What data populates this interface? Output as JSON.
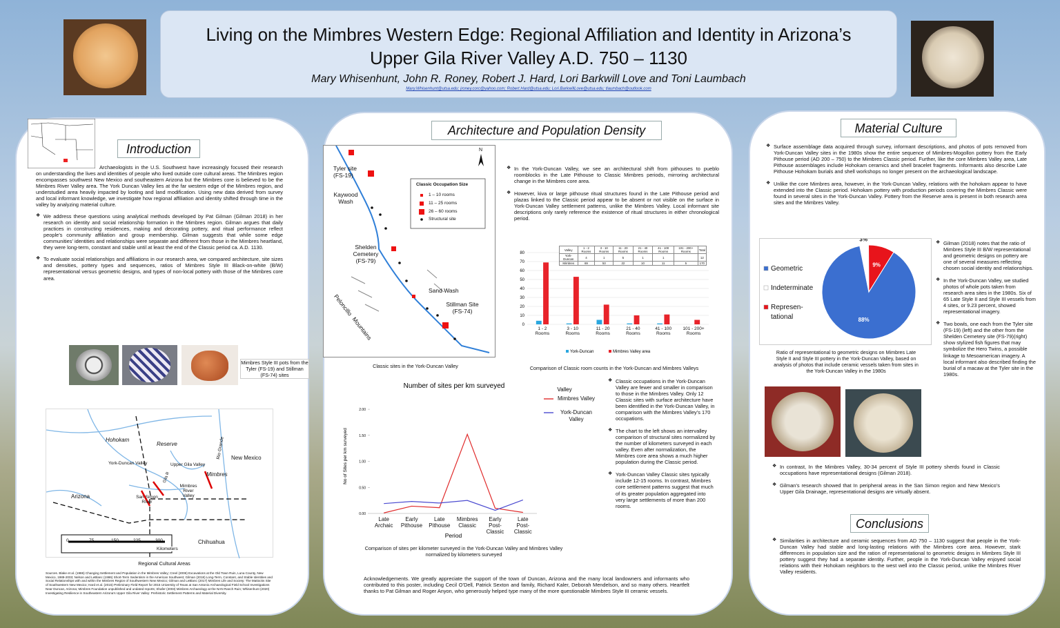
{
  "header": {
    "title": "Living on the Mimbres Western Edge: Regional Affiliation and Identity in Arizona’s Upper Gila River Valley A.D. 750 – 1130",
    "authors": "Mary Whisenhunt, John R. Roney, Robert J. Hard, Lori Barkwill Love and Toni Laumbach",
    "emails": "Mary.Whisenhunt@utsa.edu; jroney.corc@yahoo.com; Robert.Hard@utsa.edu; Lori.BarkwillLove@utsa.edu; tlaumbach@outlook.com"
  },
  "introduction": {
    "title": "Introduction",
    "paragraphs": [
      "Archaeologists in the U.S. Southwest have increasingly focused their research on understanding the lives and identities of people who lived outside core cultural areas. The Mimbres region encompasses southwest New Mexico and southeastern Arizona but the Mimbres core is believed to be the Mimbres River Valley area. The York Duncan Valley lies at the far western edge of the Mimbres region, and understudied area heavily impacted by looting and land modification. Using new data derived from survey and local informant knowledge, we investigate how regional affiliation and identity shifted through time in the valley by analyzing material culture.",
      "We address these questions using analytical methods developed by Pat Gilman (Gilman 2018) in her research on identity and social relationship formation in the Mimbres region. Gilman argues that daily practices in constructing residences, making and decorating pottery, and ritual performance reflect people’s community affiliation and group membership. Gilman suggests that while some edge communities’ identities and relationships were separate and different from those in the Mimbres heartland, they were long-term, constant and stable until at least the end of the Classic period ca. A.D. 1130.",
      "To evaluate social relationships and affiliations in our research area, we compared architecture, site sizes and densities, pottery types and sequences, ratios of Mimbres Style III Black-on-white (B/W) representational versus geometric designs, and types of non-local pottery with those of the Mimbres core area."
    ]
  },
  "pottery_figure": {
    "caption": "Mimbres Style III pots from the Tyler (FS-19) and Stillman (FS-74) sites"
  },
  "regional_map": {
    "caption": "Regional Cultural Areas",
    "labels": [
      "Hohokam",
      "Reserve",
      "Rio Grande",
      "New Mexico",
      "York-Duncan Valley",
      "Upper Gila Valley",
      "Gila R",
      "Mimbres",
      "Arizona",
      "San Simon River",
      "Mimbres River Valley",
      "Chihuahua"
    ],
    "scale": [
      0,
      75,
      150,
      225,
      300
    ],
    "scale_unit": "Kilometers"
  },
  "sources": "Sources. Blake et al. (1986) Changing Settlement and Population in the Mimbres Valley; Creel (2006) Excavations at the Old Town Ruin, Luna County, New Mexico, 1989-2003; Nelson and LeBlanc (1986) Short-Term Sedentism in the American Southwest; Gilman (2018) Long-Term, Constant, and Stable Identities and Social Relationships with and within the Mimbres Region of Southwestern New Mexico; Gilman and LeBlanc (2017) Mimbres Life and Society: The Mattocks Site of Southwestern New Mexico; Hard et al. (2015) Preliminary Field Report for 2015 University of Texas at San Antonio Archaeological Field School Investigations Near Duncan, Arizona; Mimbres Foundation unpublished and undated reports; Shafer (2003) Mimbres Archaeology at the NAN Ranch Ruin; Whisenhunt (2020) Investigating Resilience in Southeastern Arizona’s Upper Gila River Valley: Prehistoric Settlement Patterns and Material Diversity.",
  "architecture": {
    "title": "Architecture and Population Density",
    "bullets": [
      "In the York-Duncan Valley, we see an architectural shift from pithouses to pueblo roomblocks in the Late Pithouse to Classic Mimbres periods, mirroring architectural change in the Mimbres core area.",
      "However, kiva or large pithouse ritual structures found in the Late Pithouse period and plazas linked to the Classic period appear to be absent or not visible on the surface in York-Duncan Valley settlement patterns, unlike the Mimbres Valley. Local informant site descriptions only rarely reference the existence of ritual structures in either chronological period."
    ]
  },
  "site_map": {
    "caption": "Classic sites in the York-Duncan Valley",
    "labels": [
      "Tyler site (FS-19)",
      "Kaywood Wash",
      "Shelden Cemetery (FS-79)",
      "Sand Wash",
      "Stillman Site (FS-74)",
      "Peloncillo",
      "Mountains",
      "N"
    ],
    "legend_title": "Classic Occupation Size",
    "legend": [
      "1 – 10 rooms",
      "11 – 25 rooms",
      "26 – 60 rooms",
      "Structural site"
    ]
  },
  "room_chart": {
    "type": "bar",
    "caption": "Comparison of Classic room counts in the York-Duncan and Mimbres Valleys",
    "categories": [
      "1 - 2 Rooms",
      "3 - 10 Rooms",
      "11 - 20 Rooms",
      "21 - 40 Rooms",
      "41 - 100 Rooms",
      "101 - 200+ Rooms"
    ],
    "series": [
      {
        "name": "York-Duncan",
        "color": "#2aa7df",
        "values": [
          4,
          1,
          5,
          1,
          1,
          0
        ]
      },
      {
        "name": "Mimbres Valley area",
        "color": "#e8232a",
        "values": [
          69,
          53,
          22,
          10,
          11,
          5
        ]
      }
    ],
    "ylim": [
      0,
      80
    ],
    "yticks": [
      0,
      10,
      20,
      30,
      40,
      50,
      60,
      70,
      80
    ],
    "grid": true,
    "table": {
      "header": [
        "Valley",
        "1 - 2 Rooms",
        "3 - 10 Rooms",
        "11 - 20 Rooms",
        "21 - 40 Rooms",
        "41 - 100 Rooms",
        "101 - 200+ Rooms",
        "Total"
      ],
      "rows": [
        [
          "York-Duncan",
          4,
          1,
          5,
          1,
          1,
          null,
          12
        ],
        [
          "Mimbres",
          69,
          53,
          22,
          10,
          11,
          5,
          170
        ]
      ]
    }
  },
  "density_chart": {
    "type": "line",
    "title": "Number of sites per km surveyed",
    "caption": "Comparison of sites per kilometer surveyed in the York-Duncan Valley and Mimbres Valley normalized by kilometers surveyed",
    "xlabel": "Period",
    "ylabel": "No of Sites per km surveyed",
    "legend_title": "Valley",
    "categories": [
      "Late Archaic",
      "Early Pithouse",
      "Late Pithouse",
      "Mimbres Classic",
      "Early Post-Classic",
      "Late Post-Classic"
    ],
    "series": [
      {
        "name": "Mimbres Valley",
        "color": "#e02b2b",
        "values": [
          0.01,
          0.14,
          0.11,
          1.52,
          0.1,
          0.02
        ]
      },
      {
        "name": "York-Duncan Valley",
        "color": "#4a4ad0",
        "values": [
          0.19,
          0.23,
          0.2,
          0.25,
          0.06,
          0.26
        ]
      }
    ],
    "ylim": [
      0,
      2.2
    ],
    "yticks": [
      {
        "value": 0,
        "label": "0.00"
      },
      {
        "value": 0.5,
        "label": "0.50"
      },
      {
        "value": 1,
        "label": "1.00"
      },
      {
        "value": 1.5,
        "label": "1.50"
      },
      {
        "value": 2,
        "label": "2.00"
      }
    ]
  },
  "density_notes": [
    "Classic occupations in the York-Duncan Valley are fewer and smaller in comparison to those in the Mimbres Valley. Only 12 Classic sites with surface architecture have been identified in the York-Duncan Valley, in comparison with the Mimbres Valley’s 170 occupations.",
    "The chart to the left shows an intervalley comparison of structural sites normalized by the number of kilometers surveyed in each valley. Even after normalization, the Mimbres core area shows a much higher population during the Classic period.",
    "York-Duncan Valley Classic sites typically include 12-15 rooms. In contrast, Mimbres core settlement patterns suggest that much of its greater population aggregated into very large settlements of more than 200 rooms."
  ],
  "acknowledgements": "Acknowledgements. We greatly appreciate the support of the town of Duncan, Arizona and the many local landowners and informants who contributed to this poster, including Cecil O’Dell, Patrick Sexton and family, Richard Kaler, Deborah Mendelson, and so many others. Heartfelt thanks to Pat Gilman and Roger Anyon, who generously helped type many of the more questionable Mimbres Style III ceramic vessels.",
  "material_culture": {
    "title": "Material Culture",
    "bullets": [
      "Surface assemblage data acquired through survey, informant descriptions, and photos of pots removed from York-Duncan Valley sites in the 1980s show the entire sequence of Mimbres-Mogollon pottery from the Early Pithouse period (AD 200 – 750) to the Mimbres Classic period. Further, like the core Mimbres Valley area, Late Pithouse assemblages include Hohokam ceramics and shell bracelet fragments. Informants also describe Late Pithouse Hohokam burials and shell workshops no longer present on the archaeological landscape.",
      "Unlike the core Mimbres area, however, in the York-Duncan Valley, relations with the hohokam appear to have extended into the Classic period. Hohokam pottery with production periods covering the Mimbres Classic were found in several sites in the York-Duncan Valley. Pottery from the Reserve area is present in both research area sites and the Mimbres Valley."
    ],
    "side_bullets": [
      "Gilman (2018) notes that the ratio of Mimbres Style III B/W representational and geometric designs on pottery are one of several measures reflecting chosen social identity and relationships.",
      "In the York-Duncan Valley, we studied photos of whole pots taken from research area sites in the 1980s. Six of 65 Late Style II and Style III vessels from 4 sites, or 9.23 percent, showed representational imagery.",
      "Two bowls, one each from the Tyler site (FS-19) (left) and the other from the Shelden Cemetery site (FS-79)(right) show stylized fish figures that may symbolize the Hero Twins, a possible linkage to Mesoamerican imagery. A local informant also described finding the burial of a macaw at the Tyler site in the 1980s."
    ],
    "lower_bullets": [
      "In contrast, In the Mimbres Valley, 30-34 percent of Style III pottery sherds found in Classic occupations have representational designs (Gilman 2018).",
      "Gilman’s research showed that In peripheral areas in the San Simon region and New Mexico’s Upper Gila Drainage, representational designs are virtually absent."
    ]
  },
  "design_chart": {
    "type": "pie",
    "caption": "Ratio of representational to geometric designs on Mimbres Late Style II and Style III pottery in the York-Duncan Valley, based on analysis of photos that include ceramic vessels taken from sites in the York-Duncan Valley in the 1980s",
    "categories": [
      "Geometric",
      "Indeterminate",
      "Represen- tational"
    ],
    "values": [
      88,
      3,
      9
    ],
    "value_labels": [
      "88%",
      "3%",
      "9%"
    ],
    "colors": [
      "#3b6fd0",
      "#ffffff",
      "#e8141b"
    ]
  },
  "conclusions": {
    "title": "Conclusions",
    "text": "Similarities in architecture and ceramic sequences from AD 750 – 1130 suggest that people in the York-Duncan Valley had stable and long-lasting relations with the Mimbres core area. However, stark differences in population size and the ration of representational to geometric designs in Mimbres Style III pottery suggest they had a separate identity. Further, people in the York-Duncan Valley enjoyed social relations with their Hohokam neighbors to the west well into the Classic period, unlike the Mimbres River Valley residents."
  }
}
